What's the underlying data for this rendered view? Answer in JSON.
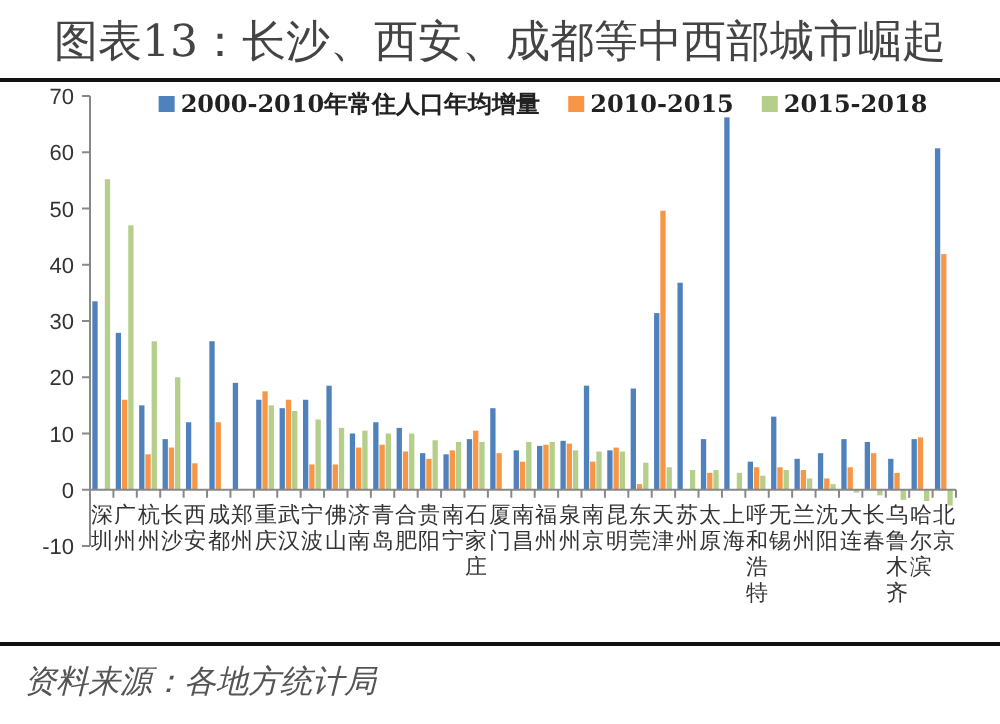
{
  "chart_data": {
    "type": "bar",
    "title": "图表13：长沙、西安、成都等中西部城市崛起",
    "categories": [
      "深圳",
      "广州",
      "杭州",
      "长沙",
      "西安",
      "成都",
      "郑州",
      "重庆",
      "武汉",
      "宁波",
      "佛山",
      "济南",
      "青岛",
      "合肥",
      "贵阳",
      "南宁",
      "石家庄",
      "厦门",
      "南昌",
      "福州",
      "泉州",
      "南京",
      "昆明",
      "东莞",
      "天津",
      "苏州",
      "太原",
      "上海",
      "呼和浩特",
      "无锡",
      "兰州",
      "沈阳",
      "大连",
      "长春",
      "乌鲁木齐",
      "哈尔滨",
      "北京"
    ],
    "series": [
      {
        "name": "2000-2010年常住人口年均增量",
        "color": "#4f81bd",
        "values": [
          33.5,
          27.9,
          15,
          9,
          12,
          26.4,
          19,
          16,
          14.5,
          16,
          18.5,
          10,
          12,
          11,
          6.5,
          6.3,
          9,
          14.5,
          7,
          7.8,
          8.7,
          18.5,
          7,
          18,
          31.4,
          36.8,
          9,
          66.2,
          5,
          13,
          5.5,
          6.5,
          9,
          8.5,
          5.5,
          9,
          60.7
        ]
      },
      {
        "name": "2010-2015",
        "color": "#f79646",
        "values": [
          null,
          16,
          6.3,
          7.5,
          4.7,
          12,
          null,
          17.5,
          16,
          4.5,
          4.5,
          7.5,
          8,
          6.8,
          5.5,
          7,
          10.5,
          6.5,
          5,
          8,
          8.2,
          5,
          7.5,
          1,
          49.6,
          null,
          3,
          null,
          4,
          4,
          3.5,
          2,
          4,
          6.5,
          3,
          9.3,
          41.9
        ]
      },
      {
        "name": "2015-2018",
        "color": "#b5cf8a",
        "values": [
          55.2,
          47,
          26.4,
          20,
          null,
          null,
          null,
          15,
          14,
          12.5,
          11,
          10.5,
          10,
          10,
          8.8,
          8.5,
          8.5,
          null,
          8.5,
          8.5,
          7,
          6.8,
          6.8,
          4.8,
          4,
          3.5,
          3.5,
          3,
          2.5,
          3.5,
          2,
          1,
          -0.5,
          -1,
          -1.8,
          -2,
          -2.8
        ]
      }
    ],
    "ylim": [
      -10,
      70
    ],
    "yticks": [
      -10,
      0,
      10,
      20,
      30,
      40,
      50,
      60,
      70
    ],
    "legend": "top",
    "annotations": [
      "资料来源：各地方统计局"
    ]
  }
}
